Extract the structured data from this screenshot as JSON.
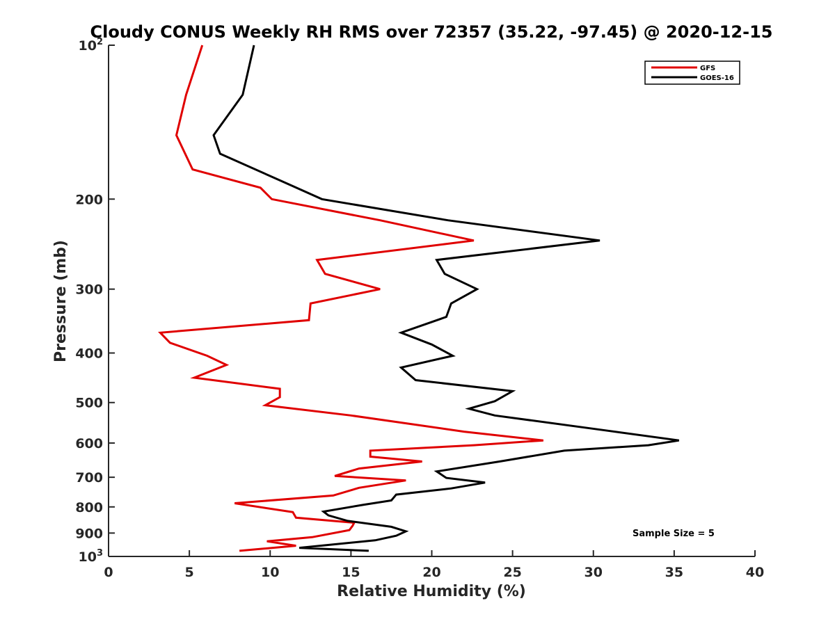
{
  "chart_data": {
    "type": "line",
    "title": "Cloudy CONUS Weekly RH RMS over 72357 (35.22, -97.45) @ 2020-12-15",
    "xlabel": "Relative Humidity (%)",
    "ylabel": "Pressure (mb)",
    "xlim": [
      0,
      40
    ],
    "ylim": [
      100,
      1000
    ],
    "y_scale": "log",
    "y_reversed": true,
    "grid": false,
    "legend_position": "top-right",
    "x_ticks": [
      "0",
      "5",
      "10",
      "15",
      "20",
      "25",
      "30",
      "35",
      "40"
    ],
    "y_ticks": [
      {
        "value": 100,
        "base": "10",
        "exp": "2"
      },
      {
        "value": 200,
        "label": "200"
      },
      {
        "value": 300,
        "label": "300"
      },
      {
        "value": 400,
        "label": "400"
      },
      {
        "value": 500,
        "label": "500"
      },
      {
        "value": 600,
        "label": "600"
      },
      {
        "value": 700,
        "label": "700"
      },
      {
        "value": 800,
        "label": "800"
      },
      {
        "value": 900,
        "label": "900"
      },
      {
        "value": 1000,
        "base": "10",
        "exp": "3"
      }
    ],
    "annotation": "Sample Size = 5",
    "series": [
      {
        "name": "GFS",
        "color": "#e00000",
        "points": [
          [
            5.8,
            100
          ],
          [
            4.8,
            125
          ],
          [
            4.2,
            150
          ],
          [
            5.2,
            175
          ],
          [
            9.4,
            190
          ],
          [
            10.1,
            200
          ],
          [
            16.8,
            220
          ],
          [
            22.6,
            241
          ],
          [
            12.9,
            263
          ],
          [
            13.4,
            280
          ],
          [
            16.8,
            300
          ],
          [
            12.5,
            320
          ],
          [
            12.4,
            345
          ],
          [
            3.2,
            365
          ],
          [
            3.8,
            382
          ],
          [
            6.1,
            405
          ],
          [
            7.3,
            422
          ],
          [
            5.3,
            447
          ],
          [
            10.6,
            470
          ],
          [
            10.6,
            488
          ],
          [
            9.7,
            506
          ],
          [
            15.0,
            530
          ],
          [
            22.0,
            570
          ],
          [
            26.9,
            593
          ],
          [
            22.6,
            606
          ],
          [
            16.2,
            621
          ],
          [
            16.2,
            638
          ],
          [
            19.4,
            652
          ],
          [
            15.5,
            673
          ],
          [
            14.0,
            696
          ],
          [
            18.4,
            710
          ],
          [
            15.5,
            734
          ],
          [
            13.9,
            760
          ],
          [
            7.8,
            787
          ],
          [
            11.4,
            819
          ],
          [
            11.6,
            840
          ],
          [
            15.2,
            859
          ],
          [
            15.1,
            871
          ],
          [
            14.9,
            888
          ],
          [
            12.6,
            917
          ],
          [
            9.8,
            934
          ],
          [
            11.6,
            953
          ],
          [
            8.1,
            975
          ]
        ]
      },
      {
        "name": "GOES-16",
        "color": "#000000",
        "points": [
          [
            9.0,
            100
          ],
          [
            8.3,
            125
          ],
          [
            6.5,
            150
          ],
          [
            6.9,
            163
          ],
          [
            11.3,
            188
          ],
          [
            13.2,
            200
          ],
          [
            21.0,
            220
          ],
          [
            30.4,
            241
          ],
          [
            20.3,
            263
          ],
          [
            20.8,
            280
          ],
          [
            22.8,
            300
          ],
          [
            21.2,
            320
          ],
          [
            20.9,
            340
          ],
          [
            18.1,
            365
          ],
          [
            20.0,
            385
          ],
          [
            21.3,
            405
          ],
          [
            18.1,
            427
          ],
          [
            19.0,
            452
          ],
          [
            25.0,
            475
          ],
          [
            23.9,
            497
          ],
          [
            22.3,
            514
          ],
          [
            23.9,
            530
          ],
          [
            30.6,
            566
          ],
          [
            35.3,
            593
          ],
          [
            33.4,
            606
          ],
          [
            28.2,
            621
          ],
          [
            24.2,
            652
          ],
          [
            20.3,
            682
          ],
          [
            20.9,
            702
          ],
          [
            23.3,
            717
          ],
          [
            21.2,
            736
          ],
          [
            17.8,
            757
          ],
          [
            17.5,
            777
          ],
          [
            15.8,
            792
          ],
          [
            13.3,
            817
          ],
          [
            13.6,
            831
          ],
          [
            14.8,
            852
          ],
          [
            17.5,
            875
          ],
          [
            18.4,
            893
          ],
          [
            17.8,
            911
          ],
          [
            16.5,
            930
          ],
          [
            11.8,
            962
          ],
          [
            16.1,
            975
          ]
        ]
      }
    ]
  }
}
